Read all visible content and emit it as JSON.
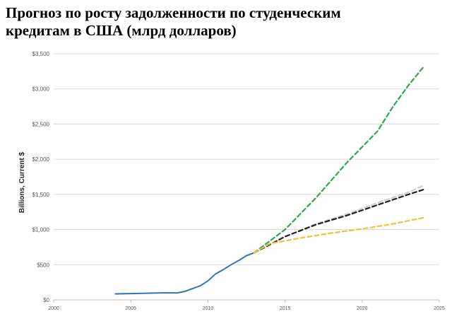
{
  "header": {
    "title_line1": "Прогноз по росту задолженности по студенческим",
    "title_line2": "кредитам в США (млрд долларов)"
  },
  "chart_data": {
    "type": "line",
    "title": "Прогноз по росту задолженности по студенческим кредитам в США (млрд долларов)",
    "xlabel": "",
    "ylabel": "Billions, Current $",
    "xlim": [
      2000,
      2025
    ],
    "ylim": [
      0,
      3500
    ],
    "x_ticks": [
      2000,
      2005,
      2010,
      2015,
      2020,
      2025
    ],
    "x_tick_labels": [
      "2000",
      "2005",
      "2010",
      "2015",
      "2020",
      "2025"
    ],
    "y_ticks": [
      0,
      500,
      1000,
      1500,
      2000,
      2500,
      3000,
      3500
    ],
    "y_tick_labels": [
      "$0",
      "$500",
      "$1,000",
      "$1,500",
      "$2,000",
      "$2,500",
      "$3,000",
      "$3,500"
    ],
    "grid": "horizontal",
    "legend": "none",
    "series": [
      {
        "style": "solid",
        "color": "#2e75b6",
        "x": [
          2004,
          2005,
          2006,
          2007,
          2008,
          2008.5,
          2009,
          2009.5,
          2010,
          2010.5,
          2011,
          2011.5,
          2012,
          2012.5,
          2013
        ],
        "y": [
          85,
          90,
          95,
          100,
          100,
          120,
          160,
          200,
          270,
          370,
          430,
          500,
          560,
          630,
          670
        ]
      },
      {
        "style": "dashed",
        "color": "#2ca84b",
        "x": [
          2013,
          2015,
          2017,
          2019,
          2021,
          2022,
          2023,
          2024
        ],
        "y": [
          670,
          1000,
          1450,
          1950,
          2400,
          2750,
          3050,
          3320
        ]
      },
      {
        "style": "dashed",
        "color": "#c9cdd6",
        "x": [
          2013,
          2015,
          2017,
          2019,
          2021,
          2023,
          2024
        ],
        "y": [
          670,
          900,
          1080,
          1220,
          1380,
          1530,
          1630
        ]
      },
      {
        "style": "dashed",
        "color": "#1f1f1f",
        "x": [
          2013,
          2015,
          2017,
          2019,
          2021,
          2023,
          2024
        ],
        "y": [
          670,
          900,
          1070,
          1200,
          1350,
          1500,
          1570
        ]
      },
      {
        "style": "dashed",
        "color": "#f0c23c",
        "x": [
          2013,
          2014,
          2016,
          2018,
          2020,
          2022,
          2024
        ],
        "y": [
          670,
          800,
          880,
          950,
          1010,
          1080,
          1170
        ]
      }
    ]
  }
}
